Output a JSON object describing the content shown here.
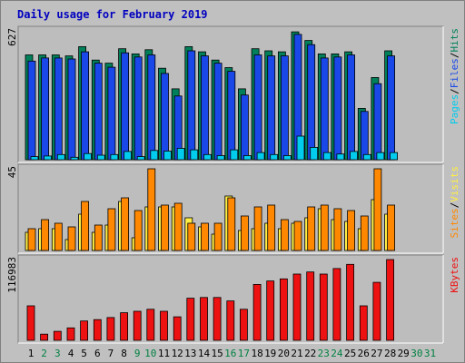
{
  "title": "Daily usage for February 2019",
  "colors": {
    "page_bg": "#c0c0c0",
    "panel_bg": "#bdbdbd",
    "title": "#0000c0",
    "hits": "#00805a",
    "files": "#1a48e8",
    "pages": "#00ccee",
    "visits": "#ffee44",
    "sites": "#ff8800",
    "kbytes": "#ee1111",
    "weekday": "#000000",
    "weekend": "#008040"
  },
  "chart_data": [
    {
      "type": "bar",
      "panel": "requests",
      "max_label": "627",
      "ylim": [
        0,
        627
      ],
      "legend": [
        {
          "key": "pages",
          "text": "Pages"
        },
        {
          "key": "sep",
          "text": "/"
        },
        {
          "key": "files",
          "text": "Files"
        },
        {
          "key": "sep",
          "text": "/"
        },
        {
          "key": "hits",
          "text": "Hits"
        }
      ],
      "categories": [
        "1",
        "2",
        "3",
        "4",
        "5",
        "6",
        "7",
        "8",
        "9",
        "10",
        "11",
        "12",
        "13",
        "14",
        "15",
        "16",
        "17",
        "18",
        "19",
        "20",
        "21",
        "22",
        "23",
        "24",
        "25",
        "26",
        "27",
        "28"
      ],
      "series": [
        {
          "name": "Hits",
          "color_key": "hits",
          "values": [
            510,
            510,
            510,
            505,
            550,
            485,
            470,
            540,
            515,
            535,
            445,
            345,
            550,
            525,
            485,
            448,
            345,
            540,
            530,
            525,
            622,
            580,
            515,
            515,
            525,
            250,
            400,
            530
          ]
        },
        {
          "name": "Files",
          "color_key": "files",
          "values": [
            480,
            495,
            495,
            490,
            525,
            470,
            450,
            520,
            500,
            510,
            420,
            310,
            530,
            505,
            470,
            430,
            315,
            510,
            505,
            505,
            610,
            560,
            495,
            500,
            510,
            235,
            370,
            505
          ]
        },
        {
          "name": "Pages",
          "color_key": "pages",
          "values": [
            15,
            18,
            25,
            12,
            30,
            22,
            25,
            40,
            15,
            45,
            42,
            55,
            48,
            25,
            20,
            48,
            20,
            35,
            25,
            20,
            115,
            60,
            35,
            28,
            40,
            25,
            35,
            35
          ]
        }
      ]
    },
    {
      "type": "bar",
      "panel": "visitors",
      "max_label": "45",
      "ylim": [
        0,
        45
      ],
      "legend": [
        {
          "key": "sites",
          "text": "Sites"
        },
        {
          "key": "sep",
          "text": "/"
        },
        {
          "key": "visits",
          "text": "Visits"
        }
      ],
      "categories": [
        "1",
        "2",
        "3",
        "4",
        "5",
        "6",
        "7",
        "8",
        "9",
        "10",
        "11",
        "12",
        "13",
        "14",
        "15",
        "16",
        "17",
        "18",
        "19",
        "20",
        "21",
        "22",
        "23",
        "24",
        "25",
        "26",
        "27",
        "28"
      ],
      "series": [
        {
          "name": "Visits",
          "color_key": "visits",
          "values": [
            10,
            12,
            12,
            6,
            20,
            10,
            14,
            27,
            7,
            24,
            24,
            24,
            18,
            13,
            9,
            30,
            11,
            12,
            15,
            12,
            15,
            18,
            23,
            17,
            16,
            12,
            28,
            20
          ]
        },
        {
          "name": "Sites",
          "color_key": "sites",
          "values": [
            12,
            17,
            15,
            13,
            27,
            14,
            23,
            29,
            22,
            45,
            25,
            26,
            15,
            15,
            15,
            29,
            19,
            24,
            25,
            17,
            16,
            24,
            25,
            23,
            22,
            19,
            45,
            25
          ]
        }
      ]
    },
    {
      "type": "bar",
      "panel": "kbytes",
      "max_label": "116983",
      "ylim": [
        0,
        116983
      ],
      "legend": [
        {
          "key": "kbytes",
          "text": "KBytes"
        }
      ],
      "categories": [
        "1",
        "2",
        "3",
        "4",
        "5",
        "6",
        "7",
        "8",
        "9",
        "10",
        "11",
        "12",
        "13",
        "14",
        "15",
        "16",
        "17",
        "18",
        "19",
        "20",
        "21",
        "22",
        "23",
        "24",
        "25",
        "26",
        "27",
        "28"
      ],
      "series": [
        {
          "name": "KBytes",
          "color_key": "kbytes",
          "values": [
            50000,
            9000,
            13000,
            18000,
            28000,
            30000,
            33000,
            40000,
            42000,
            45000,
            42000,
            34000,
            61000,
            62000,
            62000,
            57000,
            45000,
            81000,
            86000,
            89000,
            96000,
            99000,
            96000,
            104000,
            110000,
            50000,
            84000,
            116983
          ]
        }
      ]
    }
  ],
  "x_axis": {
    "days": [
      "1",
      "2",
      "3",
      "4",
      "5",
      "6",
      "7",
      "8",
      "9",
      "10",
      "11",
      "12",
      "13",
      "14",
      "15",
      "16",
      "17",
      "18",
      "19",
      "20",
      "21",
      "22",
      "23",
      "24",
      "25",
      "26",
      "27",
      "28",
      "29",
      "30",
      "31"
    ],
    "weekend": [
      false,
      true,
      true,
      false,
      false,
      false,
      false,
      false,
      true,
      true,
      false,
      false,
      false,
      false,
      false,
      true,
      true,
      false,
      false,
      false,
      false,
      false,
      true,
      true,
      false,
      false,
      false,
      false,
      false,
      true,
      true
    ]
  }
}
